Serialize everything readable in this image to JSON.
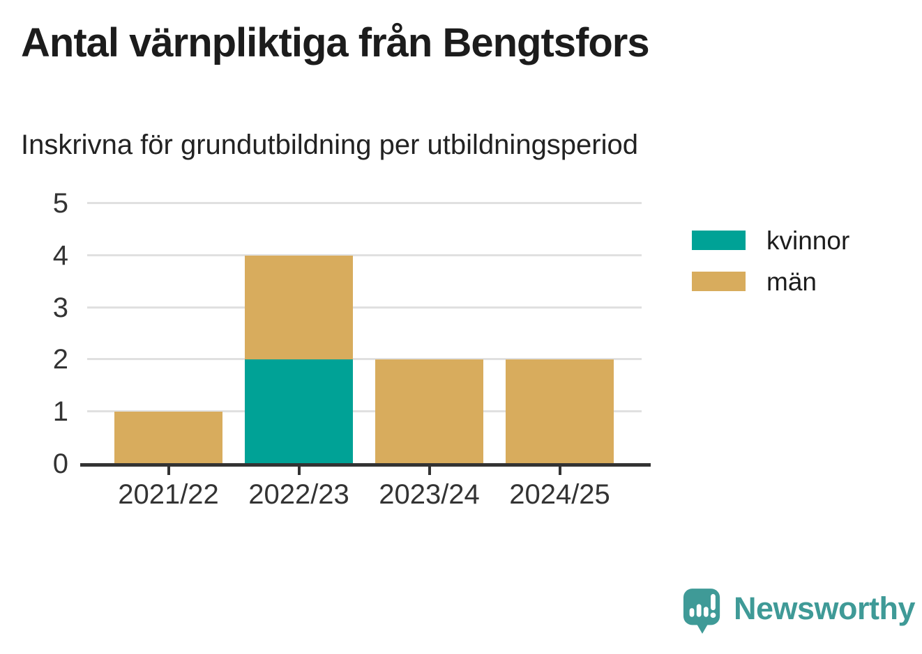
{
  "chart_data": {
    "type": "bar",
    "stacked": true,
    "title": "Antal värnpliktiga från Bengtsfors",
    "subtitle": "Inskrivna för grundutbildning per utbildningsperiod",
    "categories": [
      "2021/22",
      "2022/23",
      "2023/24",
      "2024/25"
    ],
    "series": [
      {
        "name": "kvinnor",
        "color": "#00a296",
        "values": [
          0,
          2,
          0,
          0
        ]
      },
      {
        "name": "män",
        "color": "#d8ac5d",
        "values": [
          1,
          2,
          2,
          2
        ]
      }
    ],
    "totals_by_category": [
      1,
      4,
      2,
      2
    ],
    "xlabel": "",
    "ylabel": "",
    "ylim": [
      0,
      5
    ],
    "yticks": [
      0,
      1,
      2,
      3,
      4,
      5
    ],
    "grid": true,
    "legend_position": "right"
  },
  "branding": {
    "name": "Newsworthy",
    "color": "#3f9a97"
  },
  "style": {
    "background": "#ffffff",
    "grid_color": "#e0e0e0",
    "axis_color": "#333333",
    "tick_label_color": "#333333",
    "text_color": "#1c1c1c"
  }
}
